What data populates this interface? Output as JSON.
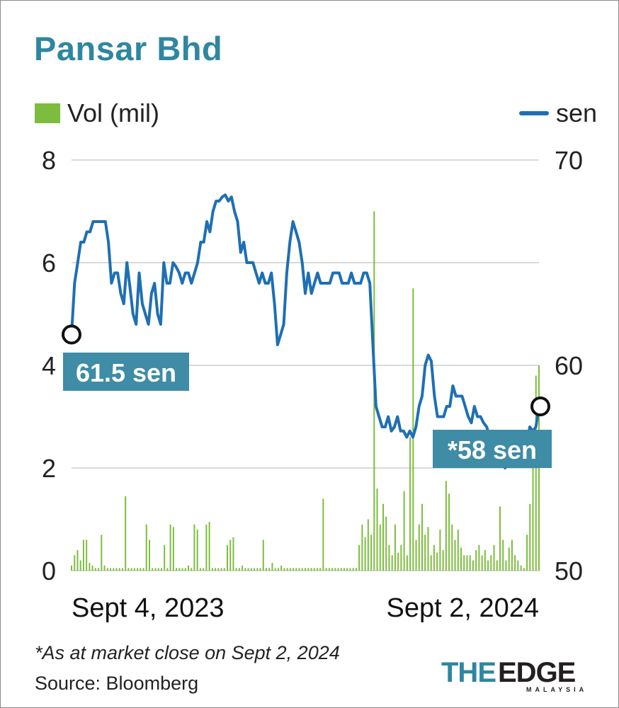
{
  "title": "Pansar Bhd",
  "legend": {
    "vol_label": "Vol (mil)",
    "price_label": "sen"
  },
  "callouts": {
    "start": "61.5 sen",
    "end": "*58 sen"
  },
  "footnote": "*As at market close on Sept 2, 2024",
  "source": "Source: Bloomberg",
  "logo": {
    "main": "THEEDGE",
    "sub": "MALAYSIA"
  },
  "colors": {
    "title": "#2f86a1",
    "line": "#1f6fb3",
    "bars": "#7cbd3d",
    "callout": "#3e8ca5"
  },
  "chart_data": {
    "type": "line+bar",
    "x_labels": [
      "Sept 4, 2023",
      "Sept 2, 2024"
    ],
    "left_axis": {
      "label": "Vol (mil)",
      "ticks": [
        "0",
        "2",
        "4",
        "6",
        "8"
      ],
      "range": [
        0,
        8
      ]
    },
    "right_axis": {
      "label": "sen",
      "ticks": [
        "50",
        "60",
        "70"
      ],
      "range": [
        50,
        70
      ]
    },
    "grid": true,
    "series": [
      {
        "name": "sen",
        "type": "line",
        "axis": "right",
        "values": [
          61.5,
          64,
          65,
          66,
          66,
          66.5,
          66.5,
          67,
          67,
          67,
          67,
          67,
          66,
          64,
          64.5,
          64.5,
          63.5,
          63,
          65,
          63.8,
          62.5,
          62,
          64.5,
          63,
          62.5,
          62,
          63.5,
          64,
          62.5,
          62,
          65,
          64,
          64,
          65,
          64.8,
          64.5,
          64,
          64.5,
          64.5,
          64,
          64.5,
          65,
          66,
          66,
          67,
          66.5,
          67.5,
          68,
          68,
          68.2,
          68.3,
          68,
          68.2,
          67.5,
          67,
          65.5,
          66,
          65,
          65,
          65,
          64.5,
          64,
          64.5,
          64,
          64,
          64.5,
          63,
          61,
          61.5,
          62,
          64.5,
          66,
          67,
          66.5,
          66,
          65,
          63.5,
          64.5,
          63.5,
          64,
          64.5,
          64,
          64,
          64,
          64,
          64.5,
          64.5,
          64.5,
          64,
          64,
          64,
          64.5,
          64,
          64,
          64,
          64.5,
          64.5,
          64,
          61,
          58,
          57.5,
          57,
          57,
          57.5,
          56.8,
          57,
          57.5,
          56.8,
          56.8,
          56.5,
          56.8,
          56.5,
          57,
          58,
          58.5,
          60,
          60.5,
          60.2,
          58.5,
          57.5,
          57.5,
          57.5,
          58,
          58,
          59,
          58.5,
          58.5,
          58.5,
          58,
          57.5,
          57.2,
          58,
          57.5,
          57.5,
          57.2,
          57,
          56.5,
          56.5,
          56,
          55.5,
          55.5,
          55,
          55.5,
          55.2,
          55.5,
          55.5,
          55.5,
          55.5,
          56,
          57,
          56.8,
          57,
          58
        ]
      },
      {
        "name": "Vol (mil)",
        "type": "bar",
        "axis": "left",
        "values": [
          0.1,
          0.3,
          0.4,
          0.2,
          0.6,
          0.6,
          0.15,
          0.1,
          0.05,
          0.05,
          0.7,
          0.1,
          0.05,
          0.05,
          0.05,
          0.05,
          0.05,
          0.05,
          1.45,
          0.05,
          0.05,
          0.05,
          0.05,
          0.05,
          0.05,
          0.9,
          0.6,
          0.05,
          0.05,
          0.05,
          0.05,
          0.5,
          0.05,
          0.9,
          0.85,
          0.05,
          0.05,
          0.05,
          0.05,
          0.1,
          0.05,
          0.9,
          0.8,
          0.05,
          0.05,
          0.9,
          0.95,
          0.05,
          0.05,
          0.05,
          0.05,
          0.05,
          0.5,
          0.6,
          0.65,
          0.05,
          0.05,
          0.1,
          0.05,
          0.05,
          0.05,
          0.05,
          0.05,
          0.05,
          0.6,
          0.05,
          0.05,
          0.15,
          0.05,
          0.05,
          0.1,
          0.05,
          0.05,
          0.05,
          0.05,
          0.05,
          0.05,
          0.05,
          0.05,
          0.05,
          0.05,
          0.05,
          0.05,
          0.05,
          1.4,
          0.05,
          0.05,
          0.05,
          0.05,
          0.05,
          0.05,
          0.05,
          0.05,
          0.05,
          0.05,
          0.05,
          0.5,
          0.9,
          0.65,
          1.0,
          0.7,
          7.0,
          1.6,
          0.9,
          1.3,
          1.05,
          0.5,
          0.3,
          0.9,
          0.35,
          0.5,
          1.55,
          0.3,
          2.6,
          5.5,
          0.6,
          0.9,
          1.3,
          0.7,
          0.85,
          0.3,
          0.5,
          0.35,
          0.8,
          0.4,
          1.75,
          1.5,
          0.9,
          0.6,
          0.8,
          0.45,
          0.3,
          0.3,
          0.3,
          0.2,
          0.4,
          0.5,
          0.3,
          0.4,
          0.2,
          0.3,
          0.5,
          0.2,
          1.25,
          0.6,
          0.2,
          0.45,
          0.6,
          0.3,
          0.2,
          0.1,
          0.05,
          0.7,
          1.3,
          2.7,
          3.8,
          4.0
        ]
      }
    ]
  }
}
